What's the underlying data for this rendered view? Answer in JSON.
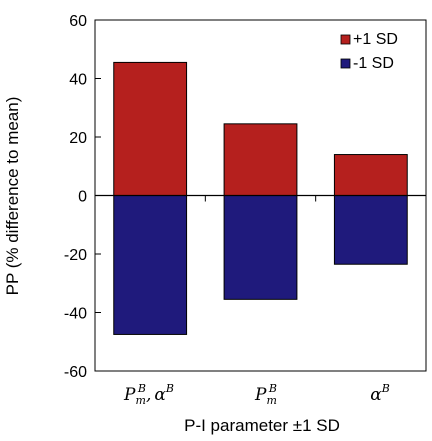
{
  "chart_data": {
    "type": "bar",
    "stacked": "diverging",
    "categories": [
      "P_m^B, α^B",
      "P_m^B",
      "α^B"
    ],
    "series": [
      {
        "name": "+1 SD",
        "color": "#b5201e",
        "values": [
          45.5,
          24.5,
          14
        ]
      },
      {
        "name": "-1 SD",
        "color": "#1f1a7c",
        "values": [
          -47.5,
          -35.5,
          -23.5
        ]
      }
    ],
    "xlabel": "P-I parameter ±1 SD",
    "ylabel": "PP (% difference to mean)",
    "ylim": [
      -60,
      60
    ],
    "yticks": [
      -60,
      -40,
      -20,
      0,
      20,
      40,
      60
    ],
    "ytick_labels": [
      "-60",
      "-40",
      "-20",
      "0",
      "20",
      "40",
      "60"
    ],
    "legend_position": "top-right",
    "grid": false
  }
}
